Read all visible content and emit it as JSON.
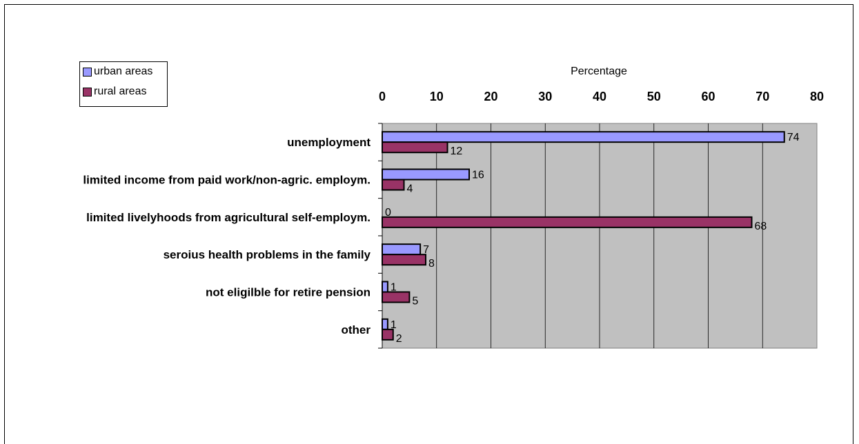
{
  "chart_data": {
    "type": "bar",
    "orientation": "horizontal",
    "categories": [
      "unemployment",
      "limited income from paid work/non-agric. employm.",
      "limited livelyhoods from agricultural self-employm.",
      "seroius health problems in the family",
      "not eligilble for retire pension",
      "other"
    ],
    "series": [
      {
        "name": "urban areas",
        "color": "#9999ff",
        "values": [
          74,
          16,
          0,
          7,
          1,
          1
        ]
      },
      {
        "name": "rural areas",
        "color": "#993366",
        "values": [
          12,
          4,
          68,
          8,
          5,
          2
        ]
      }
    ],
    "xlabel": "Percentage",
    "xlim": [
      0,
      80
    ],
    "xticks": [
      0,
      10,
      20,
      30,
      40,
      50,
      60,
      70,
      80
    ],
    "axis_position": "top",
    "plot_background": "#c0c0c0",
    "grid": true,
    "legend_position": "top-left"
  }
}
